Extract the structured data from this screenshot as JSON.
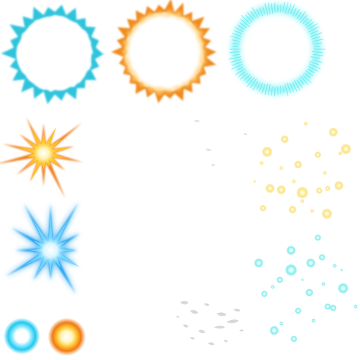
{
  "sprite_sheet": {
    "sprites": [
      {
        "name": "cyan-burst-ring",
        "colors": {
          "edge": "#2ec4dc",
          "core": "#ffffff"
        }
      },
      {
        "name": "orange-burst-ring",
        "colors": {
          "edge": "#f08a1c",
          "mid": "#ffd27a",
          "core": "#ffffff"
        }
      },
      {
        "name": "cyan-glow-ring",
        "colors": {
          "glow": "#6ff0f4",
          "core": "#ffffff"
        }
      },
      {
        "name": "orange-star-burst",
        "colors": {
          "outer": "#f07a18",
          "mid": "#ffc21e",
          "core": "#ffffff"
        }
      },
      {
        "name": "blue-star-burst",
        "colors": {
          "outer": "#1a9ff0",
          "mid": "#6fd6ff",
          "core": "#ffffff"
        }
      },
      {
        "name": "cyan-orb",
        "colors": {
          "outer": "#22c8f0",
          "core": "#ffffff"
        }
      },
      {
        "name": "orange-orb",
        "colors": {
          "outer": "#f07a14",
          "mid": "#ffcc3a",
          "core": "#ffffff"
        }
      },
      {
        "name": "yellow-sparkles",
        "colors": {
          "glow": "#f7d24a",
          "core": "#ffffff"
        }
      },
      {
        "name": "cyan-sparkles",
        "colors": {
          "glow": "#3fe0e0",
          "core": "#ffffff"
        }
      },
      {
        "name": "white-smoke-wisps",
        "colors": {
          "wisp": "#e2e2e2"
        }
      },
      {
        "name": "white-debris",
        "colors": {
          "debris": "#d8d8d8"
        }
      }
    ]
  }
}
